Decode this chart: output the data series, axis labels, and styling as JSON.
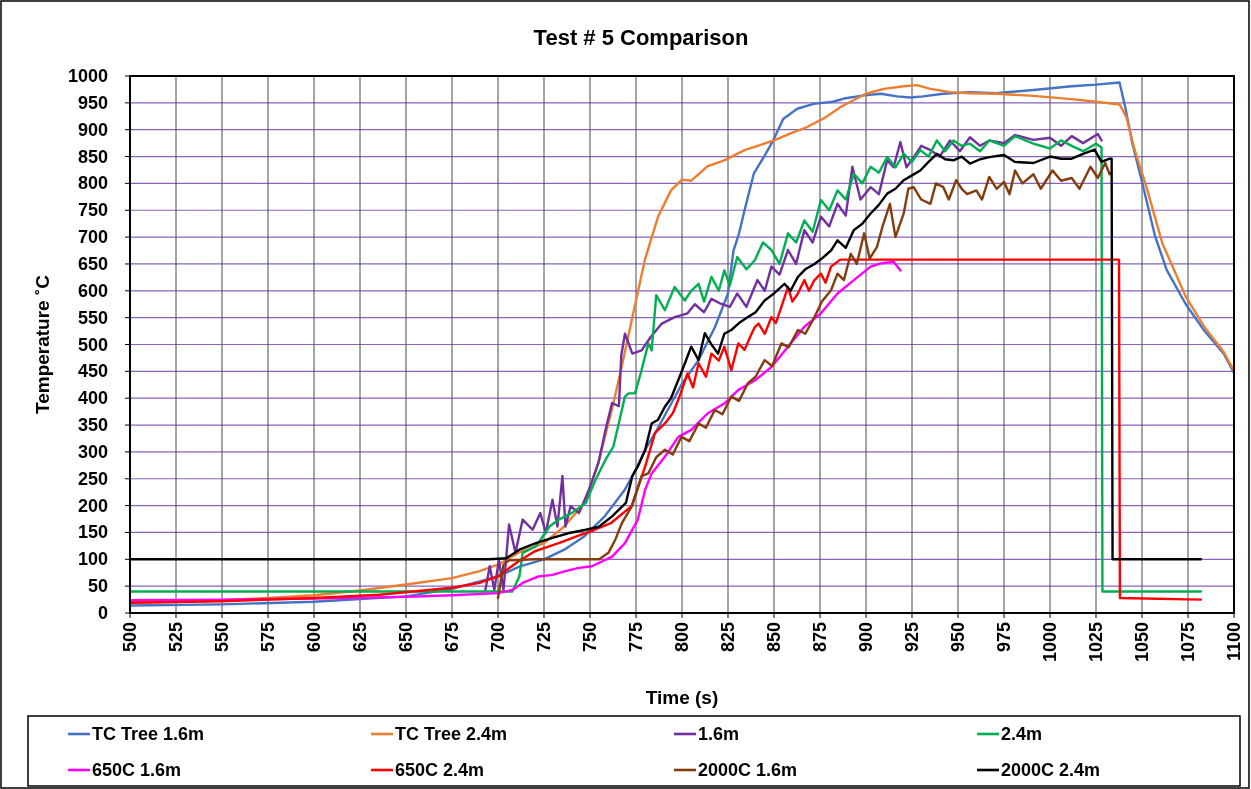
{
  "chart_data": {
    "type": "line",
    "title": "Test # 5 Comparison",
    "xlabel": "Time (s)",
    "ylabel": "Temperature ˚C",
    "xlim": [
      500,
      1100
    ],
    "xticks": [
      500,
      525,
      550,
      575,
      600,
      625,
      650,
      675,
      700,
      725,
      750,
      775,
      800,
      825,
      850,
      875,
      900,
      925,
      950,
      975,
      1000,
      1025,
      1050,
      1075,
      1100
    ],
    "ylim": [
      0,
      1000
    ],
    "yticks": [
      0,
      50,
      100,
      150,
      200,
      250,
      300,
      350,
      400,
      450,
      500,
      550,
      600,
      650,
      700,
      750,
      800,
      850,
      900,
      950,
      1000
    ],
    "grid": true,
    "legend": "bottom",
    "line_style": "solid",
    "series": [
      {
        "name": "TC Tree 1.6m",
        "color": "#4472c4",
        "x": [
          500,
          550,
          600,
          650,
          675,
          700,
          712,
          725,
          736,
          747,
          758,
          769,
          775,
          781,
          787,
          800,
          809,
          818,
          825,
          828,
          831,
          834,
          839,
          845,
          850,
          855,
          862.6,
          871.6,
          882,
          888,
          899,
          908,
          917,
          924,
          931,
          942,
          956.5,
          971,
          991,
          1011.8,
          1025,
          1037.8,
          1040.7,
          1044.8,
          1050,
          1057,
          1063.4,
          1073.8,
          1084,
          1094.4,
          1100
        ],
        "values": [
          14,
          16,
          21,
          31,
          45,
          68,
          87,
          100,
          118,
          143,
          180,
          230,
          268,
          310,
          345,
          427,
          471,
          533,
          595,
          675,
          707,
          750,
          818,
          852,
          883,
          920,
          939,
          948,
          952,
          958,
          964,
          967,
          962,
          960,
          962,
          967,
          970,
          968,
          974,
          981,
          984,
          988,
          945,
          874,
          803,
          703,
          639,
          575,
          525,
          483,
          447
        ]
      },
      {
        "name": "TC Tree 2.4m",
        "color": "#ed7d31",
        "x": [
          500,
          525,
          550,
          575,
          600,
          625,
          650,
          675,
          690,
          700,
          711,
          725,
          736,
          747,
          754.6,
          762.7,
          768,
          775,
          780,
          787,
          794,
          800,
          805,
          814,
          823,
          834,
          850,
          859,
          868,
          877,
          886,
          895,
          900,
          909.7,
          920.5,
          927.7,
          935,
          945.7,
          956.5,
          971,
          991,
          1011.8,
          1025,
          1037.8,
          1041.5,
          1045.6,
          1052.8,
          1061,
          1073.8,
          1084,
          1094.4,
          1100
        ],
        "values": [
          20,
          21,
          24,
          28,
          33,
          42,
          53,
          65,
          78,
          90,
          112,
          130,
          161,
          205,
          280,
          390,
          471,
          582,
          660,
          738,
          787,
          807,
          805,
          832,
          843,
          862,
          880,
          893,
          905,
          921,
          942,
          958,
          967,
          976,
          981,
          983,
          976,
          970,
          968,
          967,
          963,
          957,
          952,
          947,
          924,
          867,
          789,
          689,
          589,
          532,
          486,
          451
        ]
      },
      {
        "name": "1.6m",
        "color": "#7030a0",
        "x": [
          693,
          695.5,
          698,
          700.5,
          703,
          706,
          709.5,
          713.4,
          718.8,
          723,
          726,
          729.6,
          732.3,
          735,
          736.7,
          739.5,
          744,
          749.5,
          754.6,
          758.5,
          762,
          765.7,
          767,
          769,
          773,
          778,
          783,
          789,
          796,
          803,
          807,
          812,
          816,
          821,
          826,
          830,
          835,
          841,
          845,
          848.6,
          853,
          857.6,
          862,
          866.5,
          871,
          875.5,
          880,
          884.5,
          889,
          892.6,
          897,
          902.5,
          907,
          911.5,
          915,
          918.7,
          922,
          926,
          930,
          935,
          940,
          945.7,
          951,
          956.5,
          962,
          967,
          975,
          981,
          991,
          1000,
          1006,
          1011.8,
          1018,
          1026,
          1028
        ],
        "values": [
          40,
          87,
          43,
          99,
          43,
          165,
          112,
          174,
          155,
          186,
          149,
          211,
          161,
          255,
          161,
          199,
          186,
          230,
          280,
          342,
          391,
          385,
          480,
          520,
          483,
          489,
          514,
          539,
          551,
          558,
          575,
          560,
          585,
          576,
          570,
          595,
          570,
          620,
          600,
          645,
          630,
          676,
          650,
          713,
          690,
          738,
          720,
          762,
          740,
          831,
          770,
          793,
          780,
          843,
          830,
          877,
          830,
          849,
          870,
          862,
          850,
          880,
          860,
          886,
          870,
          880,
          875,
          890,
          881,
          885,
          870,
          888,
          875,
          892,
          880
        ]
      },
      {
        "name": "2.4m",
        "color": "#00b050",
        "x": [
          500,
          600,
          707.8,
          711.6,
          713.4,
          720.6,
          728,
          733,
          740,
          747.7,
          753,
          758.5,
          762.7,
          765.7,
          769,
          771,
          774.5,
          778,
          781.7,
          783.5,
          786,
          790.7,
          796,
          801.5,
          805,
          809,
          812,
          816,
          820,
          823,
          826,
          830,
          835,
          839.6,
          844,
          848.6,
          853,
          857.6,
          862,
          866.5,
          871,
          875.5,
          880,
          884.5,
          889,
          893.4,
          898,
          902.5,
          907,
          911.5,
          916,
          920.5,
          925,
          929.5,
          934,
          938.5,
          943,
          947.5,
          952,
          956.5,
          962,
          967,
          975,
          981,
          991,
          1000,
          1006,
          1011.8,
          1018,
          1025,
          1028,
          1028.5,
          1082
        ],
        "values": [
          40,
          40,
          40,
          68,
          112,
          124,
          161,
          174,
          186,
          205,
          248,
          286,
          310,
          354,
          403,
          409,
          409,
          452,
          502,
          489,
          592,
          564,
          607,
          582,
          600,
          613,
          580,
          626,
          600,
          638,
          610,
          663,
          640,
          657,
          690,
          676,
          650,
          707,
          690,
          731,
          710,
          769,
          750,
          787,
          770,
          818,
          800,
          831,
          820,
          849,
          830,
          855,
          840,
          862,
          850,
          880,
          860,
          880,
          870,
          874,
          860,
          880,
          870,
          888,
          874,
          865,
          880,
          870,
          860,
          874,
          867,
          40,
          40
        ]
      },
      {
        "name": "650C 1.6m",
        "color": "#ff00ff",
        "x": [
          500,
          550,
          600,
          650,
          675,
          700,
          707.8,
          713.4,
          722,
          729.6,
          736.7,
          743.9,
          751,
          762,
          769,
          776,
          780,
          783.5,
          790.7,
          798,
          805,
          814,
          823,
          830.5,
          840,
          848.6,
          857.6,
          866.5,
          875.5,
          884.5,
          893.4,
          902.5,
          908,
          915,
          918.7
        ],
        "values": [
          24,
          25,
          27,
          30,
          33,
          37,
          43,
          56,
          68,
          71,
          78,
          84,
          87,
          105,
          130,
          174,
          230,
          260,
          291,
          328,
          341,
          372,
          390,
          415,
          434,
          458,
          496,
          533,
          558,
          595,
          620,
          645,
          651,
          654,
          638
        ]
      },
      {
        "name": "650C 2.4m",
        "color": "#ff0000",
        "x": [
          500,
          550,
          600,
          635.6,
          675,
          690,
          700,
          711,
          720,
          725,
          733,
          743,
          752.6,
          761.6,
          772.6,
          780,
          785.3,
          790.7,
          795,
          798,
          803,
          806,
          809,
          813,
          816,
          820,
          823,
          826.8,
          830.6,
          834,
          837,
          839.6,
          841.6,
          845,
          848.6,
          851,
          854,
          857.6,
          860,
          863,
          866.5,
          869,
          872,
          875.5,
          878,
          881,
          886,
          1037.5,
          1038,
          1082
        ],
        "values": [
          19,
          22,
          28,
          34,
          47,
          56,
          68,
          96,
          115,
          121,
          130,
          143,
          155,
          168,
          199,
          273,
          335,
          353,
          372,
          397,
          446,
          420,
          465,
          440,
          483,
          470,
          496,
          452,
          502,
          490,
          514,
          533,
          539,
          520,
          551,
          540,
          570,
          607,
          580,
          595,
          620,
          600,
          620,
          632,
          615,
          645,
          658,
          658,
          28,
          25
        ]
      },
      {
        "name": "2000C 1.6m",
        "color": "#843c0c",
        "x": [
          700,
          703,
          706,
          720,
          740,
          755,
          760,
          763.8,
          767.4,
          772.8,
          778,
          781.7,
          786,
          790.7,
          795,
          799.7,
          804,
          809,
          813,
          817.8,
          822,
          826.8,
          831,
          835.8,
          840,
          844.9,
          849,
          854,
          858,
          863,
          867,
          872,
          876,
          881,
          884.5,
          888,
          891.7,
          895,
          899,
          902,
          906,
          909,
          913,
          916,
          920.5,
          923,
          925.9,
          930,
          935,
          938,
          942,
          945,
          949,
          952,
          955,
          960,
          963,
          967,
          971,
          975,
          978,
          981,
          985,
          991,
          995,
          1001.4,
          1006,
          1011.8,
          1016,
          1022,
          1026,
          1030,
          1032.4,
          1033
        ],
        "values": [
          28,
          90,
          98,
          100,
          100,
          100,
          112,
          137,
          168,
          199,
          255,
          260,
          290,
          304,
          295,
          328,
          320,
          353,
          345,
          378,
          370,
          403,
          395,
          428,
          440,
          471,
          460,
          502,
          495,
          527,
          520,
          551,
          580,
          601,
          632,
          620,
          669,
          650,
          707,
          660,
          682,
          720,
          762,
          700,
          744,
          790,
          793,
          770,
          762,
          800,
          793,
          770,
          806,
          790,
          780,
          787,
          770,
          812,
          790,
          803,
          780,
          824,
          800,
          817,
          790,
          824,
          805,
          810,
          790,
          831,
          810,
          838,
          817,
          820
        ]
      },
      {
        "name": "2000C 2.4m",
        "color": "#000000",
        "x": [
          500,
          695.5,
          704.5,
          711.6,
          720.6,
          729.6,
          738.7,
          747.7,
          755,
          762,
          769.5,
          773,
          776,
          780,
          783.5,
          787,
          790.7,
          794,
          798,
          801,
          805,
          809,
          812.4,
          816,
          819.6,
          823,
          826.8,
          831,
          835.8,
          840,
          844.9,
          850,
          855.7,
          859,
          863,
          867,
          872,
          876,
          881,
          884.5,
          889,
          893.4,
          898,
          902.5,
          907,
          911.5,
          916,
          920.5,
          925,
          929.5,
          934,
          938.5,
          943,
          947.5,
          952,
          956.5,
          962,
          967,
          975,
          981,
          991,
          1000,
          1006,
          1011.8,
          1018,
          1024.2,
          1028,
          1032.4,
          1033.5,
          1034,
          1082
        ],
        "values": [
          100,
          100,
          102,
          118,
          130,
          140,
          149,
          155,
          161,
          180,
          205,
          255,
          273,
          304,
          353,
          360,
          384,
          400,
          434,
          460,
          496,
          471,
          521,
          500,
          483,
          520,
          527,
          540,
          551,
          560,
          582,
          595,
          613,
          600,
          626,
          640,
          650,
          660,
          675,
          694,
          680,
          713,
          725,
          744,
          760,
          781,
          790,
          806,
          815,
          824,
          840,
          855,
          845,
          843,
          850,
          837,
          845,
          849,
          853,
          840,
          838,
          850,
          846,
          846,
          855,
          863,
          840,
          846,
          846,
          100,
          100
        ]
      }
    ]
  }
}
